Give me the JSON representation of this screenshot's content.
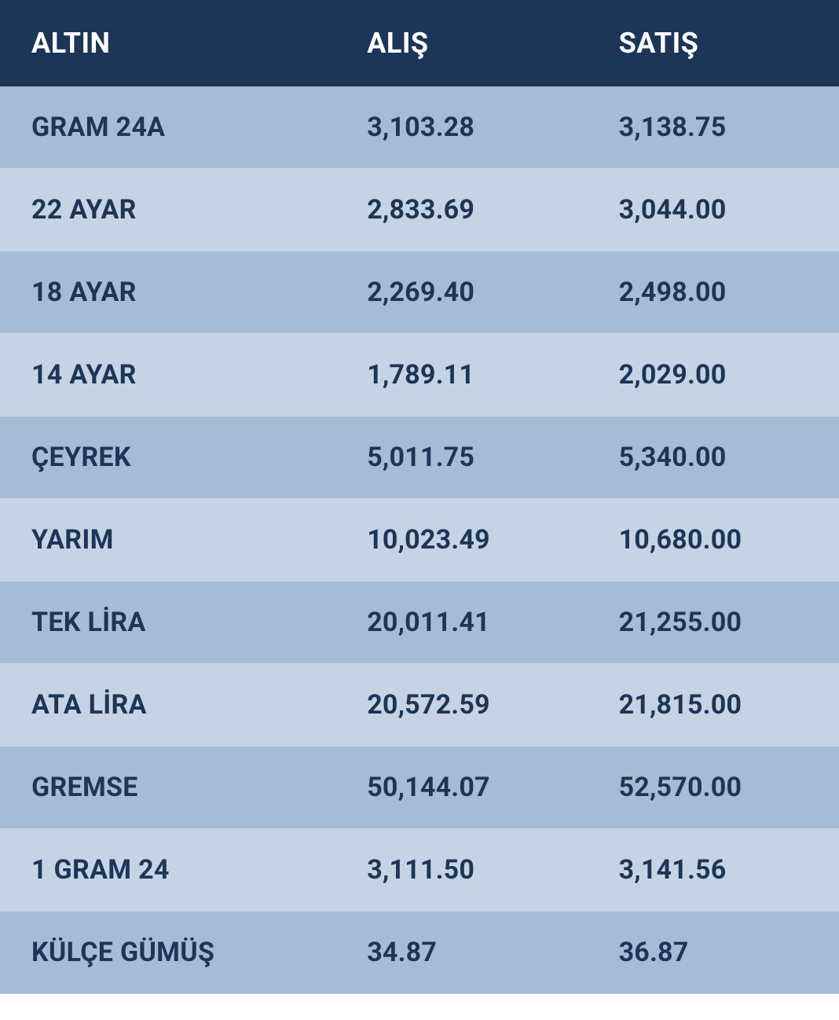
{
  "table": {
    "type": "table",
    "header_bg": "#1d3557",
    "header_text_color": "#ffffff",
    "row_odd_bg": "#a6bcd6",
    "row_even_bg": "#c5d3e4",
    "cell_text_color": "#1d3557",
    "border_color": "#c9d5e3",
    "header_fontsize": 36,
    "cell_fontsize": 34,
    "columns": [
      {
        "key": "name",
        "label": "ALTIN",
        "width": "40%"
      },
      {
        "key": "buy",
        "label": "ALIŞ",
        "width": "30%"
      },
      {
        "key": "sell",
        "label": "SATIŞ",
        "width": "30%"
      }
    ],
    "rows": [
      {
        "name": "GRAM 24A",
        "buy": "3,103.28",
        "sell": "3,138.75"
      },
      {
        "name": "22 AYAR",
        "buy": "2,833.69",
        "sell": "3,044.00"
      },
      {
        "name": "18 AYAR",
        "buy": "2,269.40",
        "sell": "2,498.00"
      },
      {
        "name": "14 AYAR",
        "buy": "1,789.11",
        "sell": "2,029.00"
      },
      {
        "name": "ÇEYREK",
        "buy": "5,011.75",
        "sell": "5,340.00"
      },
      {
        "name": "YARIM",
        "buy": "10,023.49",
        "sell": "10,680.00"
      },
      {
        "name": "TEK LİRA",
        "buy": "20,011.41",
        "sell": "21,255.00"
      },
      {
        "name": "ATA LİRA",
        "buy": "20,572.59",
        "sell": "21,815.00"
      },
      {
        "name": "GREMSE",
        "buy": "50,144.07",
        "sell": "52,570.00"
      },
      {
        "name": "1 GRAM 24",
        "buy": "3,111.50",
        "sell": "3,141.56"
      },
      {
        "name": "KÜLÇE GÜMÜŞ",
        "buy": "34.87",
        "sell": "36.87"
      }
    ]
  }
}
